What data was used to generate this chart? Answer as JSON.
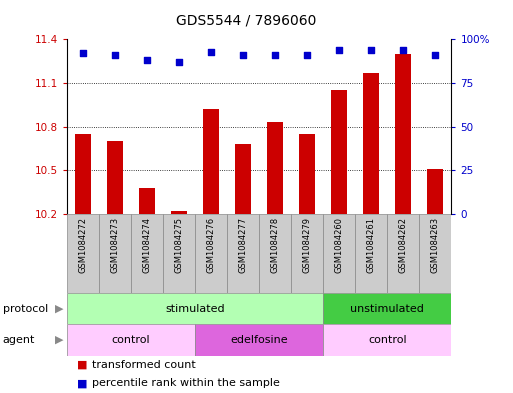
{
  "title": "GDS5544 / 7896060",
  "samples": [
    "GSM1084272",
    "GSM1084273",
    "GSM1084274",
    "GSM1084275",
    "GSM1084276",
    "GSM1084277",
    "GSM1084278",
    "GSM1084279",
    "GSM1084260",
    "GSM1084261",
    "GSM1084262",
    "GSM1084263"
  ],
  "bar_values": [
    10.75,
    10.7,
    10.38,
    10.22,
    10.92,
    10.68,
    10.83,
    10.75,
    11.05,
    11.17,
    11.3,
    10.51
  ],
  "dot_values": [
    92,
    91,
    88,
    87,
    93,
    91,
    91,
    91,
    94,
    94,
    94,
    91
  ],
  "ylim_left": [
    10.2,
    11.4
  ],
  "ylim_right": [
    0,
    100
  ],
  "yticks_left": [
    10.2,
    10.5,
    10.8,
    11.1,
    11.4
  ],
  "ytick_labels_left": [
    "10.2",
    "10.5",
    "10.8",
    "11.1",
    "11.4"
  ],
  "yticks_right": [
    0,
    25,
    50,
    75,
    100
  ],
  "ytick_labels_right": [
    "0",
    "25",
    "50",
    "75",
    "100%"
  ],
  "bar_color": "#cc0000",
  "dot_color": "#0000cc",
  "bar_width": 0.5,
  "protocol_groups": [
    {
      "label": "stimulated",
      "start": 0,
      "end": 8,
      "color": "#b3ffb3"
    },
    {
      "label": "unstimulated",
      "start": 8,
      "end": 12,
      "color": "#44cc44"
    }
  ],
  "agent_groups": [
    {
      "label": "control",
      "start": 0,
      "end": 4,
      "color": "#ffccff"
    },
    {
      "label": "edelfosine",
      "start": 4,
      "end": 8,
      "color": "#dd66dd"
    },
    {
      "label": "control",
      "start": 8,
      "end": 12,
      "color": "#ffccff"
    }
  ],
  "legend_items": [
    {
      "label": "transformed count",
      "color": "#cc0000"
    },
    {
      "label": "percentile rank within the sample",
      "color": "#0000cc"
    }
  ],
  "protocol_label": "protocol",
  "agent_label": "agent",
  "sample_bg_color": "#cccccc",
  "sample_border_color": "#888888",
  "background_color": "#ffffff",
  "plot_bg_color": "#ffffff",
  "title_fontsize": 10,
  "tick_fontsize": 7.5,
  "row_label_fontsize": 8,
  "sample_fontsize": 6,
  "legend_fontsize": 8,
  "group_label_fontsize": 8
}
